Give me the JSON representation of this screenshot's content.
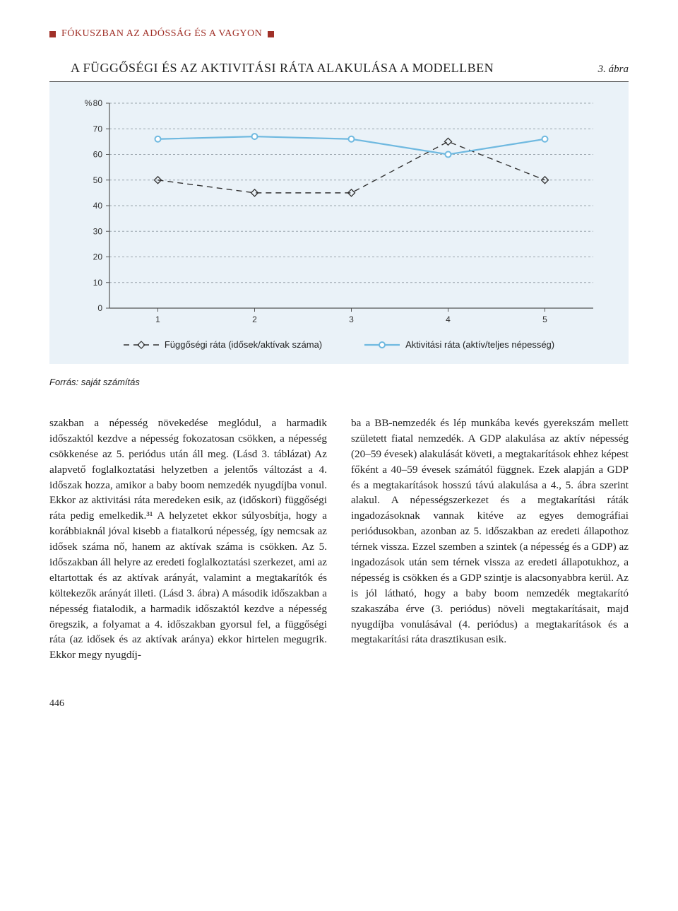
{
  "header": {
    "title": "FÓKUSZBAN AZ ADÓSSÁG ÉS A VAGYON"
  },
  "figure": {
    "number": "3. ábra",
    "title": "A FÜGGŐSÉGI ÉS AZ AKTIVITÁSI RÁTA ALAKULÁSA A MODELLBEN",
    "source": "Forrás: saját számítás",
    "chart": {
      "type": "line",
      "y_axis_label": "%",
      "x_categories": [
        "1",
        "2",
        "3",
        "4",
        "5"
      ],
      "ylim": [
        0,
        80
      ],
      "ytick_step": 10,
      "yticks": [
        "0",
        "10",
        "20",
        "30",
        "40",
        "50",
        "60",
        "70",
        "80"
      ],
      "background_color": "#eaf2f8",
      "plot_bg": "#eaf2f8",
      "grid_color": "#9aa5ad",
      "grid_dash": "3 3",
      "axis_color": "#555555",
      "series": [
        {
          "name": "Függőségi ráta (idősek/aktívak száma)",
          "values": [
            50,
            45,
            45,
            65,
            50
          ],
          "color": "#333333",
          "line_dash": "8 6",
          "line_width": 1.4,
          "marker": "diamond-open",
          "marker_size": 10,
          "marker_stroke": "#333333",
          "marker_fill": "none"
        },
        {
          "name": "Aktivitási ráta (aktív/teljes népesség)",
          "values": [
            66,
            67,
            66,
            60,
            66
          ],
          "color": "#6fb9e0",
          "line_dash": "none",
          "line_width": 2.2,
          "marker": "circle",
          "marker_size": 8,
          "marker_stroke": "#6fb9e0",
          "marker_fill": "#ffffff"
        }
      ],
      "legend": {
        "fuggoseg": "Függőségi ráta (idősek/aktívak száma)",
        "aktivitasi": "Aktivitási ráta (aktív/teljes népesség)"
      },
      "tick_font": {
        "family": "Arial",
        "size": 12,
        "color": "#333"
      }
    }
  },
  "body": {
    "col1": "szakban a népesség növekedése meglódul, a harmadik időszaktól kezdve a népesség fokozatosan csökken, a népesség csökkenése az 5. periódus után áll meg. (Lásd 3. táblázat)\n\nAz alapvető foglalkoztatási helyzetben a jelentős változást a 4. időszak hozza, amikor a baby boom nemzedék nyugdíjba vonul. Ekkor az aktivitási ráta meredeken esik, az (időskori) függőségi ráta pedig emelkedik.³¹ A helyzetet ekkor súlyosbítja, hogy a korábbiaknál jóval kisebb a fiatalkorú népesség, így nemcsak az idősek száma nő, hanem az aktívak száma is csökken. Az 5. időszakban áll helyre az eredeti foglalkoztatási szerkezet, ami az eltartottak és az aktívak arányát, valamint a megtakarítók és költekezők arányát illeti. (Lásd 3. ábra)\n\nA második időszakban a népesség fiatalodik, a harmadik időszaktól kezdve a népesség öregszik, a folyamat a 4. időszakban gyorsul fel, a függőségi ráta (az idősek és az aktívak aránya) ekkor hirtelen megugrik. Ekkor megy nyugdíj-",
    "col2": "ba a BB-nemzedék és lép munkába kevés gyerekszám mellett született fiatal nemzedék.\n\nA GDP alakulása az aktív népesség (20–59 évesek) alakulását követi, a megtakarítások ehhez képest főként a 40–59 évesek számától függnek. Ezek alapján a GDP és a megtakarítások hosszú távú alakulása a 4., 5. ábra szerint alakul.\n\nA népességszerkezet és a megtakarítási ráták ingadozásoknak vannak kitéve az egyes demográfiai periódusokban, azonban az 5. időszakban az eredeti állapothoz térnek vissza. Ezzel szemben a szintek (a népesség és a GDP) az ingadozások után sem térnek vissza az eredeti állapotukhoz, a népesség is csökken és a GDP szintje is alacsonyabbra kerül. Az is jól látható, hogy a baby boom nemzedék megtakarító szakaszába érve (3. periódus) növeli megtakarításait, majd nyugdíjba vonulásával (4. periódus) a megtakarítások és a megtakarítási ráta drasztikusan esik."
  },
  "page_number": "446"
}
